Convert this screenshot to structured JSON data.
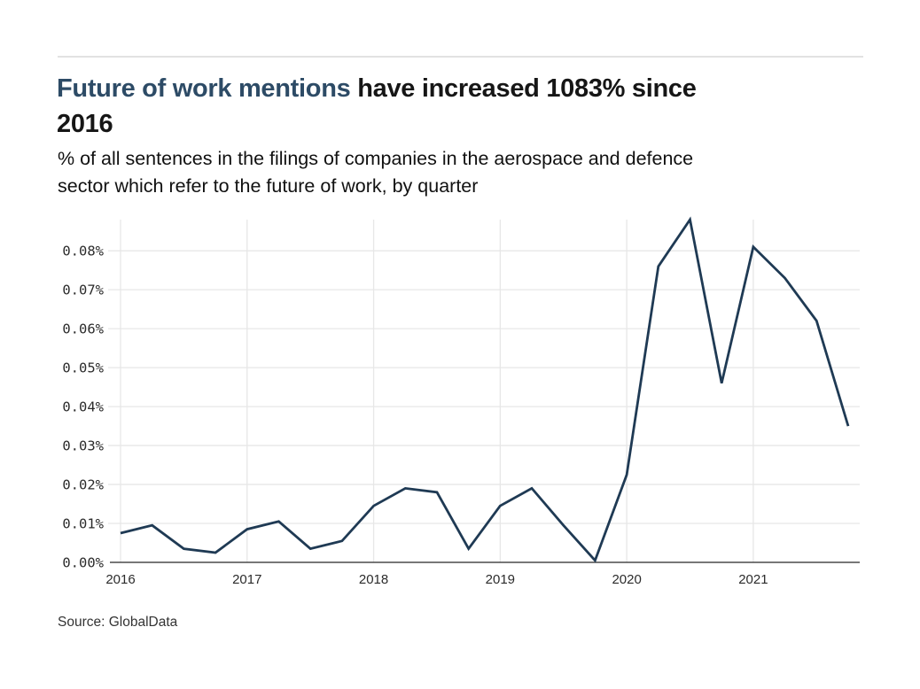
{
  "title": {
    "line1_highlight": "Future of work mentions",
    "line1_rest": " have increased 1083% since",
    "line2": "2016",
    "highlight_color": "#2d4b66",
    "text_color": "#161616"
  },
  "subtitle": {
    "line1": "% of all sentences in the filings of companies in the aerospace and defence",
    "line2": "sector which refer to the future of work, by quarter"
  },
  "source": {
    "text": "Source: GlobalData"
  },
  "chart_data": {
    "type": "line",
    "title": "Future of work mentions have increased 1083% since 2016",
    "subtitle": "% of all sentences in the filings of companies in the aerospace and defence sector which refer to the future of work, by quarter",
    "unit": "percent",
    "x": [
      "2016 Q1",
      "2016 Q2",
      "2016 Q3",
      "2016 Q4",
      "2017 Q1",
      "2017 Q2",
      "2017 Q3",
      "2017 Q4",
      "2018 Q1",
      "2018 Q2",
      "2018 Q3",
      "2018 Q4",
      "2019 Q1",
      "2019 Q2",
      "2019 Q3",
      "2019 Q4",
      "2020 Q1",
      "2020 Q2",
      "2020 Q3",
      "2020 Q4",
      "2021 Q1",
      "2021 Q2",
      "2021 Q3",
      "2021 Q4"
    ],
    "values": [
      0.0075,
      0.0095,
      0.0035,
      0.0025,
      0.0085,
      0.0105,
      0.0035,
      0.0055,
      0.0145,
      0.019,
      0.018,
      0.0035,
      0.0145,
      0.019,
      0.0095,
      0.0005,
      0.0225,
      0.076,
      0.088,
      0.046,
      0.081,
      0.073,
      0.062,
      0.035
    ],
    "x_tick_labels": [
      "2016",
      "2017",
      "2018",
      "2019",
      "2020",
      "2021"
    ],
    "y_tick_labels": [
      "0.00%",
      "0.01%",
      "0.02%",
      "0.03%",
      "0.04%",
      "0.05%",
      "0.06%",
      "0.07%",
      "0.08%"
    ],
    "ylim": [
      0,
      0.088
    ],
    "grid": true,
    "legend": "none",
    "line_color": "#1f3a54",
    "grid_color": "#e7e7e7",
    "axis_color": "#4a4a4a",
    "tick_color": "#2b2b2b"
  }
}
